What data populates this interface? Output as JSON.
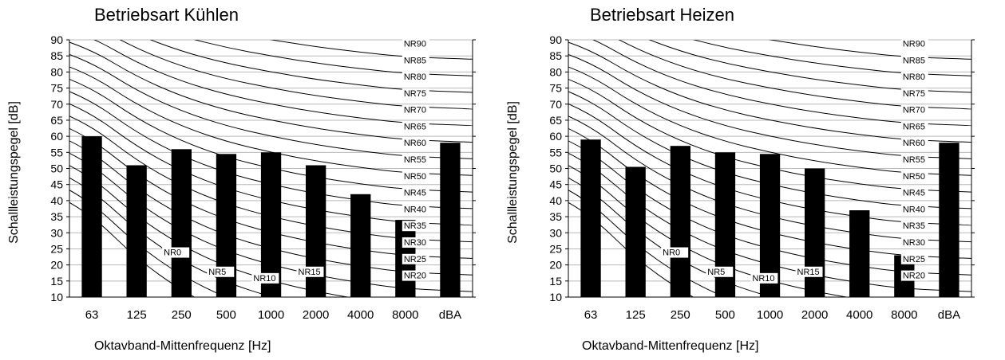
{
  "chart_data": [
    {
      "type": "bar",
      "title": "Betriebsart Kühlen",
      "xlabel": "Oktavband-Mittenfrequenz [Hz]",
      "ylabel": "Schallleistungspegel [dB]",
      "ylim": [
        10,
        90
      ],
      "yticks": [
        10,
        15,
        20,
        25,
        30,
        35,
        40,
        45,
        50,
        55,
        60,
        65,
        70,
        75,
        80,
        85,
        90
      ],
      "y2ticks": [
        10,
        20,
        30,
        40,
        50,
        60,
        70,
        80,
        90
      ],
      "categories": [
        "63",
        "125",
        "250",
        "500",
        "1000",
        "2000",
        "4000",
        "8000",
        "dBA"
      ],
      "values": [
        60,
        51,
        56,
        54.5,
        55,
        51,
        42,
        34,
        58
      ],
      "grid": true,
      "nr_curve_labels": [
        "NR0",
        "NR5",
        "NR10",
        "NR15",
        "NR20",
        "NR25",
        "NR30",
        "NR35",
        "NR40",
        "NR45",
        "NR50",
        "NR55",
        "NR60",
        "NR65",
        "NR70",
        "NR75",
        "NR80",
        "NR85",
        "NR90"
      ]
    },
    {
      "type": "bar",
      "title": "Betriebsart Heizen",
      "xlabel": "Oktavband-Mittenfrequenz [Hz]",
      "ylabel": "Schallleistungspegel [dB]",
      "ylim": [
        10,
        90
      ],
      "yticks": [
        10,
        15,
        20,
        25,
        30,
        35,
        40,
        45,
        50,
        55,
        60,
        65,
        70,
        75,
        80,
        85,
        90
      ],
      "y2ticks": [
        10,
        20,
        30,
        40,
        50,
        60,
        70,
        80,
        90
      ],
      "categories": [
        "63",
        "125",
        "250",
        "500",
        "1000",
        "2000",
        "4000",
        "8000",
        "dBA"
      ],
      "values": [
        59,
        50.5,
        57,
        55,
        54.5,
        50,
        37,
        23,
        58
      ],
      "grid": true,
      "nr_curve_labels": [
        "NR0",
        "NR5",
        "NR10",
        "NR15",
        "NR20",
        "NR25",
        "NR30",
        "NR35",
        "NR40",
        "NR45",
        "NR50",
        "NR55",
        "NR60",
        "NR65",
        "NR70",
        "NR75",
        "NR80",
        "NR85",
        "NR90"
      ]
    }
  ]
}
